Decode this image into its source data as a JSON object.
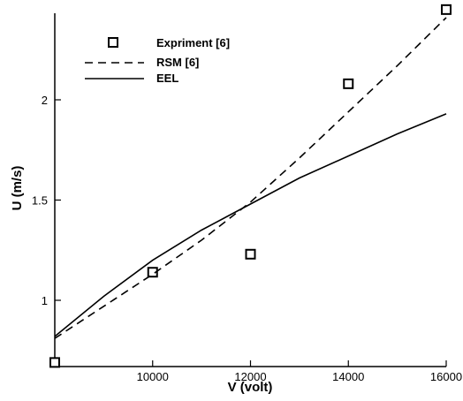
{
  "chart_data": {
    "type": "line",
    "xlabel": "V (volt)",
    "ylabel": "U (m/s)",
    "xlim": [
      8000,
      16000
    ],
    "ylim": [
      0.7,
      2.45
    ],
    "x_ticks": [
      10000,
      12000,
      14000,
      16000
    ],
    "x_tick_labels": [
      "10000",
      "12000",
      "14000",
      "16000"
    ],
    "y_ticks": [
      1,
      1.5,
      2
    ],
    "y_tick_labels": [
      "1",
      "1.5",
      "2"
    ],
    "grid": false,
    "legend_position": "top-left",
    "series": [
      {
        "name": "Expriment [6]",
        "style": "square-markers",
        "color": "#000000",
        "x": [
          8000,
          10000,
          12000,
          14000,
          16000
        ],
        "y": [
          0.69,
          1.14,
          1.23,
          2.08,
          2.45
        ]
      },
      {
        "name": "RSM [6]",
        "style": "dashed",
        "color": "#000000",
        "x": [
          8000,
          9000,
          10000,
          11000,
          12000,
          13000,
          14000,
          15000,
          16000
        ],
        "y": [
          0.81,
          0.97,
          1.13,
          1.3,
          1.49,
          1.71,
          1.94,
          2.17,
          2.41
        ]
      },
      {
        "name": "EEL",
        "style": "solid",
        "color": "#000000",
        "x": [
          8000,
          9000,
          10000,
          11000,
          12000,
          13000,
          14000,
          15000,
          16000
        ],
        "y": [
          0.82,
          1.02,
          1.2,
          1.35,
          1.48,
          1.61,
          1.72,
          1.83,
          1.93
        ]
      }
    ]
  }
}
